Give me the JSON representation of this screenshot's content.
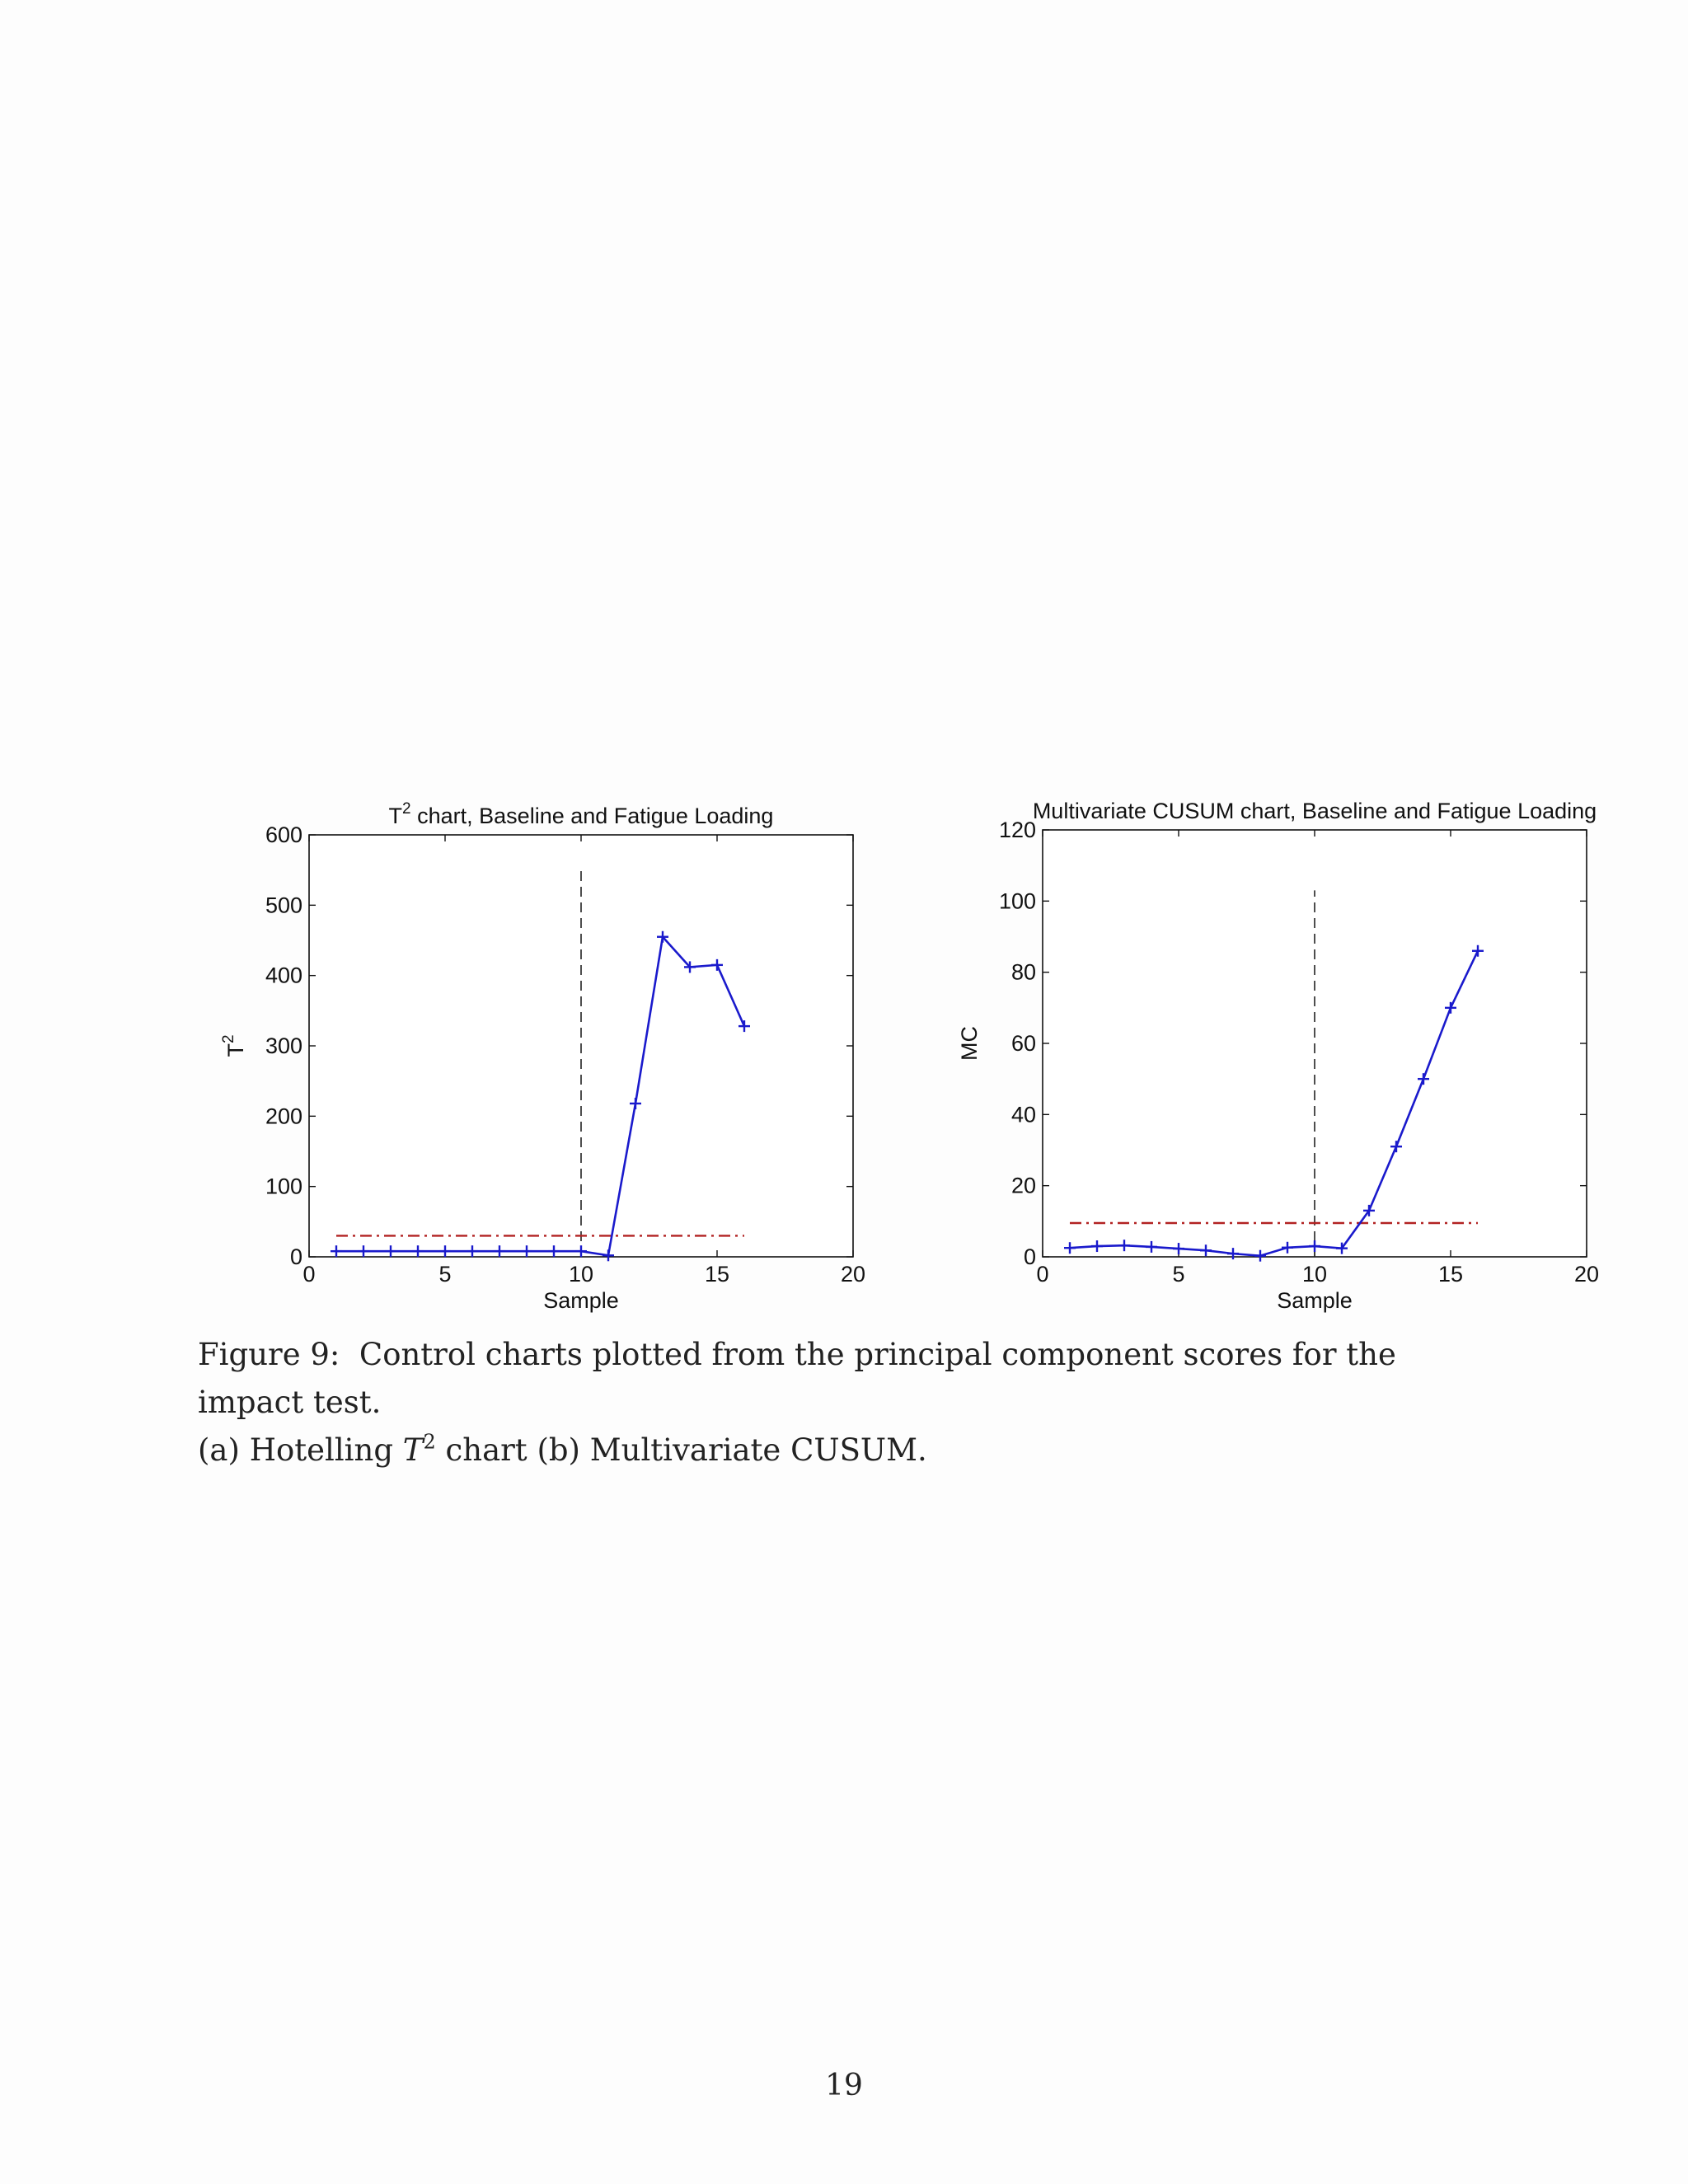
{
  "chart_data": [
    {
      "type": "line",
      "title_main": "T",
      "title_sup": "2",
      "title_rest": " chart, Baseline and Fatigue Loading",
      "xlabel": "Sample",
      "ylabel_main": "T",
      "ylabel_sup": "2",
      "xlim": [
        0,
        20
      ],
      "ylim": [
        0,
        600
      ],
      "xticks": [
        0,
        5,
        10,
        15,
        20
      ],
      "yticks": [
        0,
        100,
        200,
        300,
        400,
        500,
        600
      ],
      "grid": false,
      "series": [
        {
          "x": [
            1,
            2,
            3,
            4,
            5,
            6,
            7,
            8,
            9,
            10,
            11,
            12,
            13,
            14,
            15,
            16
          ],
          "values": [
            8,
            8,
            8,
            8,
            8,
            8,
            8,
            8,
            8,
            8,
            2,
            218,
            455,
            412,
            415,
            328
          ],
          "color": "#1a1acc",
          "marker": "+"
        }
      ],
      "control_limit": {
        "value": 30,
        "x_range": [
          1,
          16
        ],
        "color": "#b22222",
        "style": "dash-dot"
      },
      "change_point": {
        "x": 10,
        "y_range": [
          0,
          550
        ],
        "color": "#222222",
        "style": "dashed"
      }
    },
    {
      "type": "line",
      "title_main": "Multivariate CUSUM chart, Baseline and Fatigue Loading",
      "title_sup": "",
      "title_rest": "",
      "xlabel": "Sample",
      "ylabel_main": "MC",
      "ylabel_sup": "",
      "xlim": [
        0,
        20
      ],
      "ylim": [
        0,
        120
      ],
      "xticks": [
        0,
        5,
        10,
        15,
        20
      ],
      "yticks": [
        0,
        20,
        40,
        60,
        80,
        100,
        120
      ],
      "grid": false,
      "series": [
        {
          "x": [
            1,
            2,
            3,
            4,
            5,
            6,
            7,
            8,
            9,
            10,
            11,
            12,
            13,
            14,
            15,
            16
          ],
          "values": [
            2.5,
            3,
            3.2,
            2.8,
            2.3,
            1.8,
            0.9,
            0.3,
            2.6,
            3.0,
            2.4,
            13,
            31,
            50,
            70,
            86
          ],
          "color": "#1a1acc",
          "marker": "+"
        }
      ],
      "control_limit": {
        "value": 9.5,
        "x_range": [
          1,
          16
        ],
        "color": "#b22222",
        "style": "dash-dot"
      },
      "change_point": {
        "x": 10,
        "y_range": [
          0,
          103
        ],
        "color": "#222222",
        "style": "dashed"
      }
    }
  ],
  "caption": {
    "line1": "Figure 9:  Control charts plotted from the principal component scores for the impact test.",
    "line2_pre": "(a) Hotelling ",
    "line2_T": "T",
    "line2_sup": "2",
    "line2_post": " chart (b) Multivariate CUSUM."
  },
  "page_number": "19"
}
